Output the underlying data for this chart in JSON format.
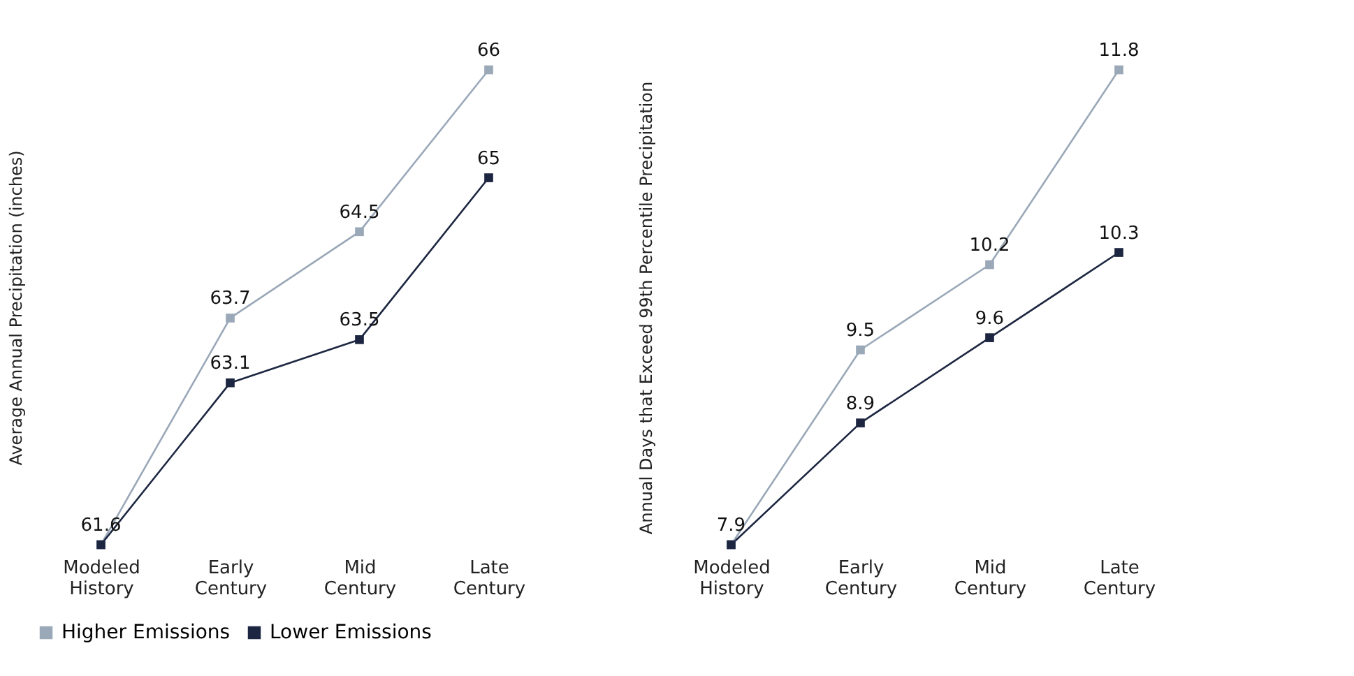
{
  "chart_data": [
    {
      "type": "line",
      "categories": [
        "Modeled History",
        "Early Century",
        "Mid Century",
        "Late Century"
      ],
      "ylabel": "Average Annual Precipitation (inches)",
      "marker": "square",
      "data_labels": true,
      "legend": "bottom left",
      "series": [
        {
          "name": "Higher Emissions",
          "color": "#9aa8b8",
          "values": [
            61.6,
            63.7,
            64.5,
            66
          ]
        },
        {
          "name": "Lower Emissions",
          "color": "#1c2640",
          "values": [
            61.6,
            63.1,
            63.5,
            65
          ],
          "value_labels": [
            null,
            "63.1",
            "63.5",
            "65"
          ]
        }
      ]
    },
    {
      "type": "line",
      "categories": [
        "Modeled History",
        "Early Century",
        "Mid Century",
        "Late Century"
      ],
      "ylabel": "Annual Days that Exceed 99th Percentile Precipitation",
      "marker": "square",
      "data_labels": true,
      "series": [
        {
          "name": "Higher Emissions",
          "color": "#9aa8b8",
          "values": [
            7.9,
            9.5,
            10.2,
            11.8
          ]
        },
        {
          "name": "Lower Emissions",
          "color": "#1c2640",
          "values": [
            7.9,
            8.9,
            9.6,
            10.3
          ],
          "value_labels": [
            null,
            "8.9",
            "9.6",
            "10.3"
          ]
        }
      ]
    }
  ]
}
